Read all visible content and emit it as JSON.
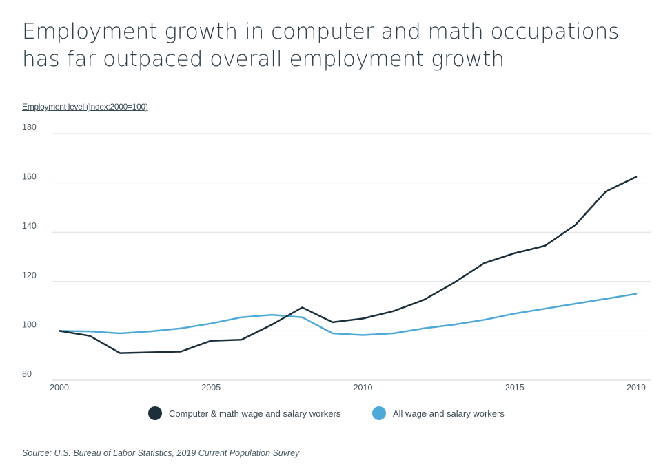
{
  "title_lines": [
    "Employment growth in computer and math occupations",
    "has far outpaced overall employment growth"
  ],
  "source": "Source: U.S. Bureau of Labor Statistics, 2019 Current Population Suvrey",
  "chart_data": {
    "type": "line",
    "ylabel": "Employment level (Index:2000=100)",
    "xlabel": "",
    "ylim": [
      80,
      180
    ],
    "xlim": [
      2000,
      2019
    ],
    "yticks": [
      80,
      100,
      120,
      140,
      160,
      180
    ],
    "xticks": [
      2000,
      2005,
      2010,
      2015,
      2019
    ],
    "grid": "horizontal",
    "legend_position": "bottom",
    "x": [
      2000,
      2001,
      2002,
      2003,
      2004,
      2005,
      2006,
      2007,
      2008,
      2009,
      2010,
      2011,
      2012,
      2013,
      2014,
      2015,
      2016,
      2017,
      2018,
      2019
    ],
    "series": [
      {
        "name": "Computer & math wage and salary workers",
        "color": "#1c2f3b",
        "values": [
          100,
          98,
          91,
          91.3,
          91.6,
          96,
          96.4,
          102.5,
          109.5,
          103.5,
          105,
          108,
          112.5,
          119.5,
          127.5,
          131.5,
          134.5,
          143,
          156.5,
          162.5
        ]
      },
      {
        "name": "All wage and salary workers",
        "color": "#4ea8d8",
        "values": [
          100,
          99.8,
          99,
          99.8,
          101,
          103,
          105.5,
          106.5,
          105.5,
          99,
          98.3,
          99,
          101,
          102.5,
          104.5,
          107,
          109,
          111,
          113,
          115
        ]
      }
    ]
  }
}
